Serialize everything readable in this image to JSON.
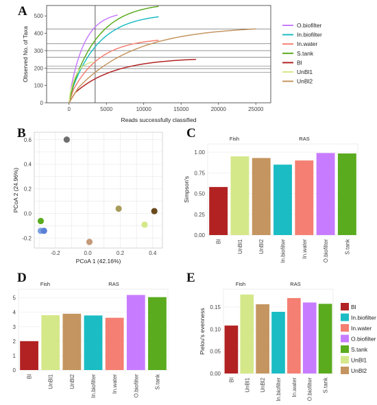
{
  "panel_labels": [
    "A",
    "B",
    "C",
    "D",
    "E"
  ],
  "colors": {
    "Bl": "#b22222",
    "UnBl1": "#d4e88a",
    "UnBl2": "#c49560",
    "In.biofilter": "#1bbcc4",
    "In.water": "#f47f72",
    "O.biofilter": "#c77cff",
    "S.tank": "#5aab1e"
  },
  "chart_data": [
    {
      "panel": "A",
      "type": "line",
      "xlabel": "Reads successfully classified",
      "ylabel": "Observed No. of Taxa",
      "xlim": [
        -3000,
        27000
      ],
      "ylim": [
        0,
        560
      ],
      "x_ticks": [
        "0",
        "5000",
        "10000",
        "15000",
        "20000",
        "25000"
      ],
      "y_ticks": [
        "0",
        "100",
        "200",
        "300",
        "400",
        "500"
      ],
      "vline_x": 3500,
      "hlines": [
        425,
        340,
        300,
        262,
        210,
        197,
        175
      ],
      "series": [
        {
          "name": "O.biofilter",
          "xmax": 6500,
          "ymax": 480
        },
        {
          "name": "In.biofilter",
          "xmax": 12000,
          "ymax": 470
        },
        {
          "name": "In.water",
          "xmax": 12000,
          "ymax": 335
        },
        {
          "name": "S.tank",
          "xmax": 12000,
          "ymax": 530
        },
        {
          "name": "Bl",
          "xmax": 17000,
          "ymax": 225
        },
        {
          "name": "UnBl1",
          "xmax": 3200,
          "ymax": 210
        },
        {
          "name": "UnBl2",
          "xmax": 25000,
          "ymax": 400
        }
      ],
      "legend": [
        "O.biofilter",
        "In.biofilter",
        "In.water",
        "S.tank",
        "Bl",
        "UnBl1",
        "UnBl2"
      ]
    },
    {
      "panel": "B",
      "type": "scatter",
      "xlabel": "PCoA 1 (42.16%)",
      "ylabel": "PCoA 2 (24.96%)",
      "xlim": [
        -0.33,
        0.46
      ],
      "ylim": [
        -0.28,
        0.66
      ],
      "x_ticks": [
        -0.2,
        0.0,
        0.2,
        0.4
      ],
      "y_ticks": [
        -0.2,
        0.0,
        0.2,
        0.4,
        0.6
      ],
      "points": [
        {
          "x": -0.13,
          "y": 0.6,
          "color": "#6e6e6e"
        },
        {
          "x": 0.19,
          "y": 0.04,
          "color": "#a89c5c"
        },
        {
          "x": 0.41,
          "y": 0.02,
          "color": "#6b4a1e"
        },
        {
          "x": 0.35,
          "y": -0.09,
          "color": "#d4e88a"
        },
        {
          "x": -0.29,
          "y": -0.06,
          "color": "#5aab1e"
        },
        {
          "x": -0.29,
          "y": -0.14,
          "color": "#7aa0e0"
        },
        {
          "x": -0.27,
          "y": -0.14,
          "color": "#5a7fd8"
        },
        {
          "x": 0.01,
          "y": -0.23,
          "color": "#c49a7a"
        }
      ]
    },
    {
      "panel": "C",
      "type": "bar",
      "ylabel": "Simpson's",
      "ylim": [
        0,
        1.1
      ],
      "y_ticks": [
        "0.00",
        "0.25",
        "0.50",
        "0.75",
        "1.00"
      ],
      "groups": [
        "Fish",
        "RAS"
      ],
      "categories": [
        "Bl",
        "UnBl1",
        "UnBl2",
        "In.biofilter",
        "In.water",
        "O.biofilter",
        "S.tank"
      ],
      "values": [
        0.58,
        0.95,
        0.93,
        0.85,
        0.9,
        0.99,
        0.985
      ]
    },
    {
      "panel": "D",
      "type": "bar",
      "ylabel": "Shannon's H'",
      "ylim": [
        0,
        5.6
      ],
      "y_ticks": [
        "0",
        "1",
        "2",
        "3",
        "4",
        "5"
      ],
      "groups": [
        "Fish",
        "RAS"
      ],
      "categories": [
        "Bl",
        "UnBl1",
        "UnBl2",
        "In.biofilter",
        "In.water",
        "O.biofilter",
        "S.tank"
      ],
      "values": [
        2.0,
        3.8,
        3.9,
        3.78,
        3.62,
        5.2,
        5.05
      ]
    },
    {
      "panel": "E",
      "type": "bar",
      "ylabel": "Pielou's evenness",
      "ylim": [
        0,
        0.19
      ],
      "y_ticks": [
        "0.00",
        "0.05",
        "0.10",
        "0.15"
      ],
      "groups": [
        "Fish",
        "RAS"
      ],
      "categories": [
        "Bl",
        "UnBl1",
        "UnBl2",
        "In.biofilter",
        "In.water",
        "O.biofilter",
        "S.tank"
      ],
      "values": [
        0.108,
        0.178,
        0.156,
        0.139,
        0.17,
        0.16,
        0.157
      ],
      "legend": [
        "Bl",
        "In.biofilter",
        "In.water",
        "O.biofilter",
        "S.tank",
        "UnBl1",
        "UnBl2"
      ]
    }
  ]
}
